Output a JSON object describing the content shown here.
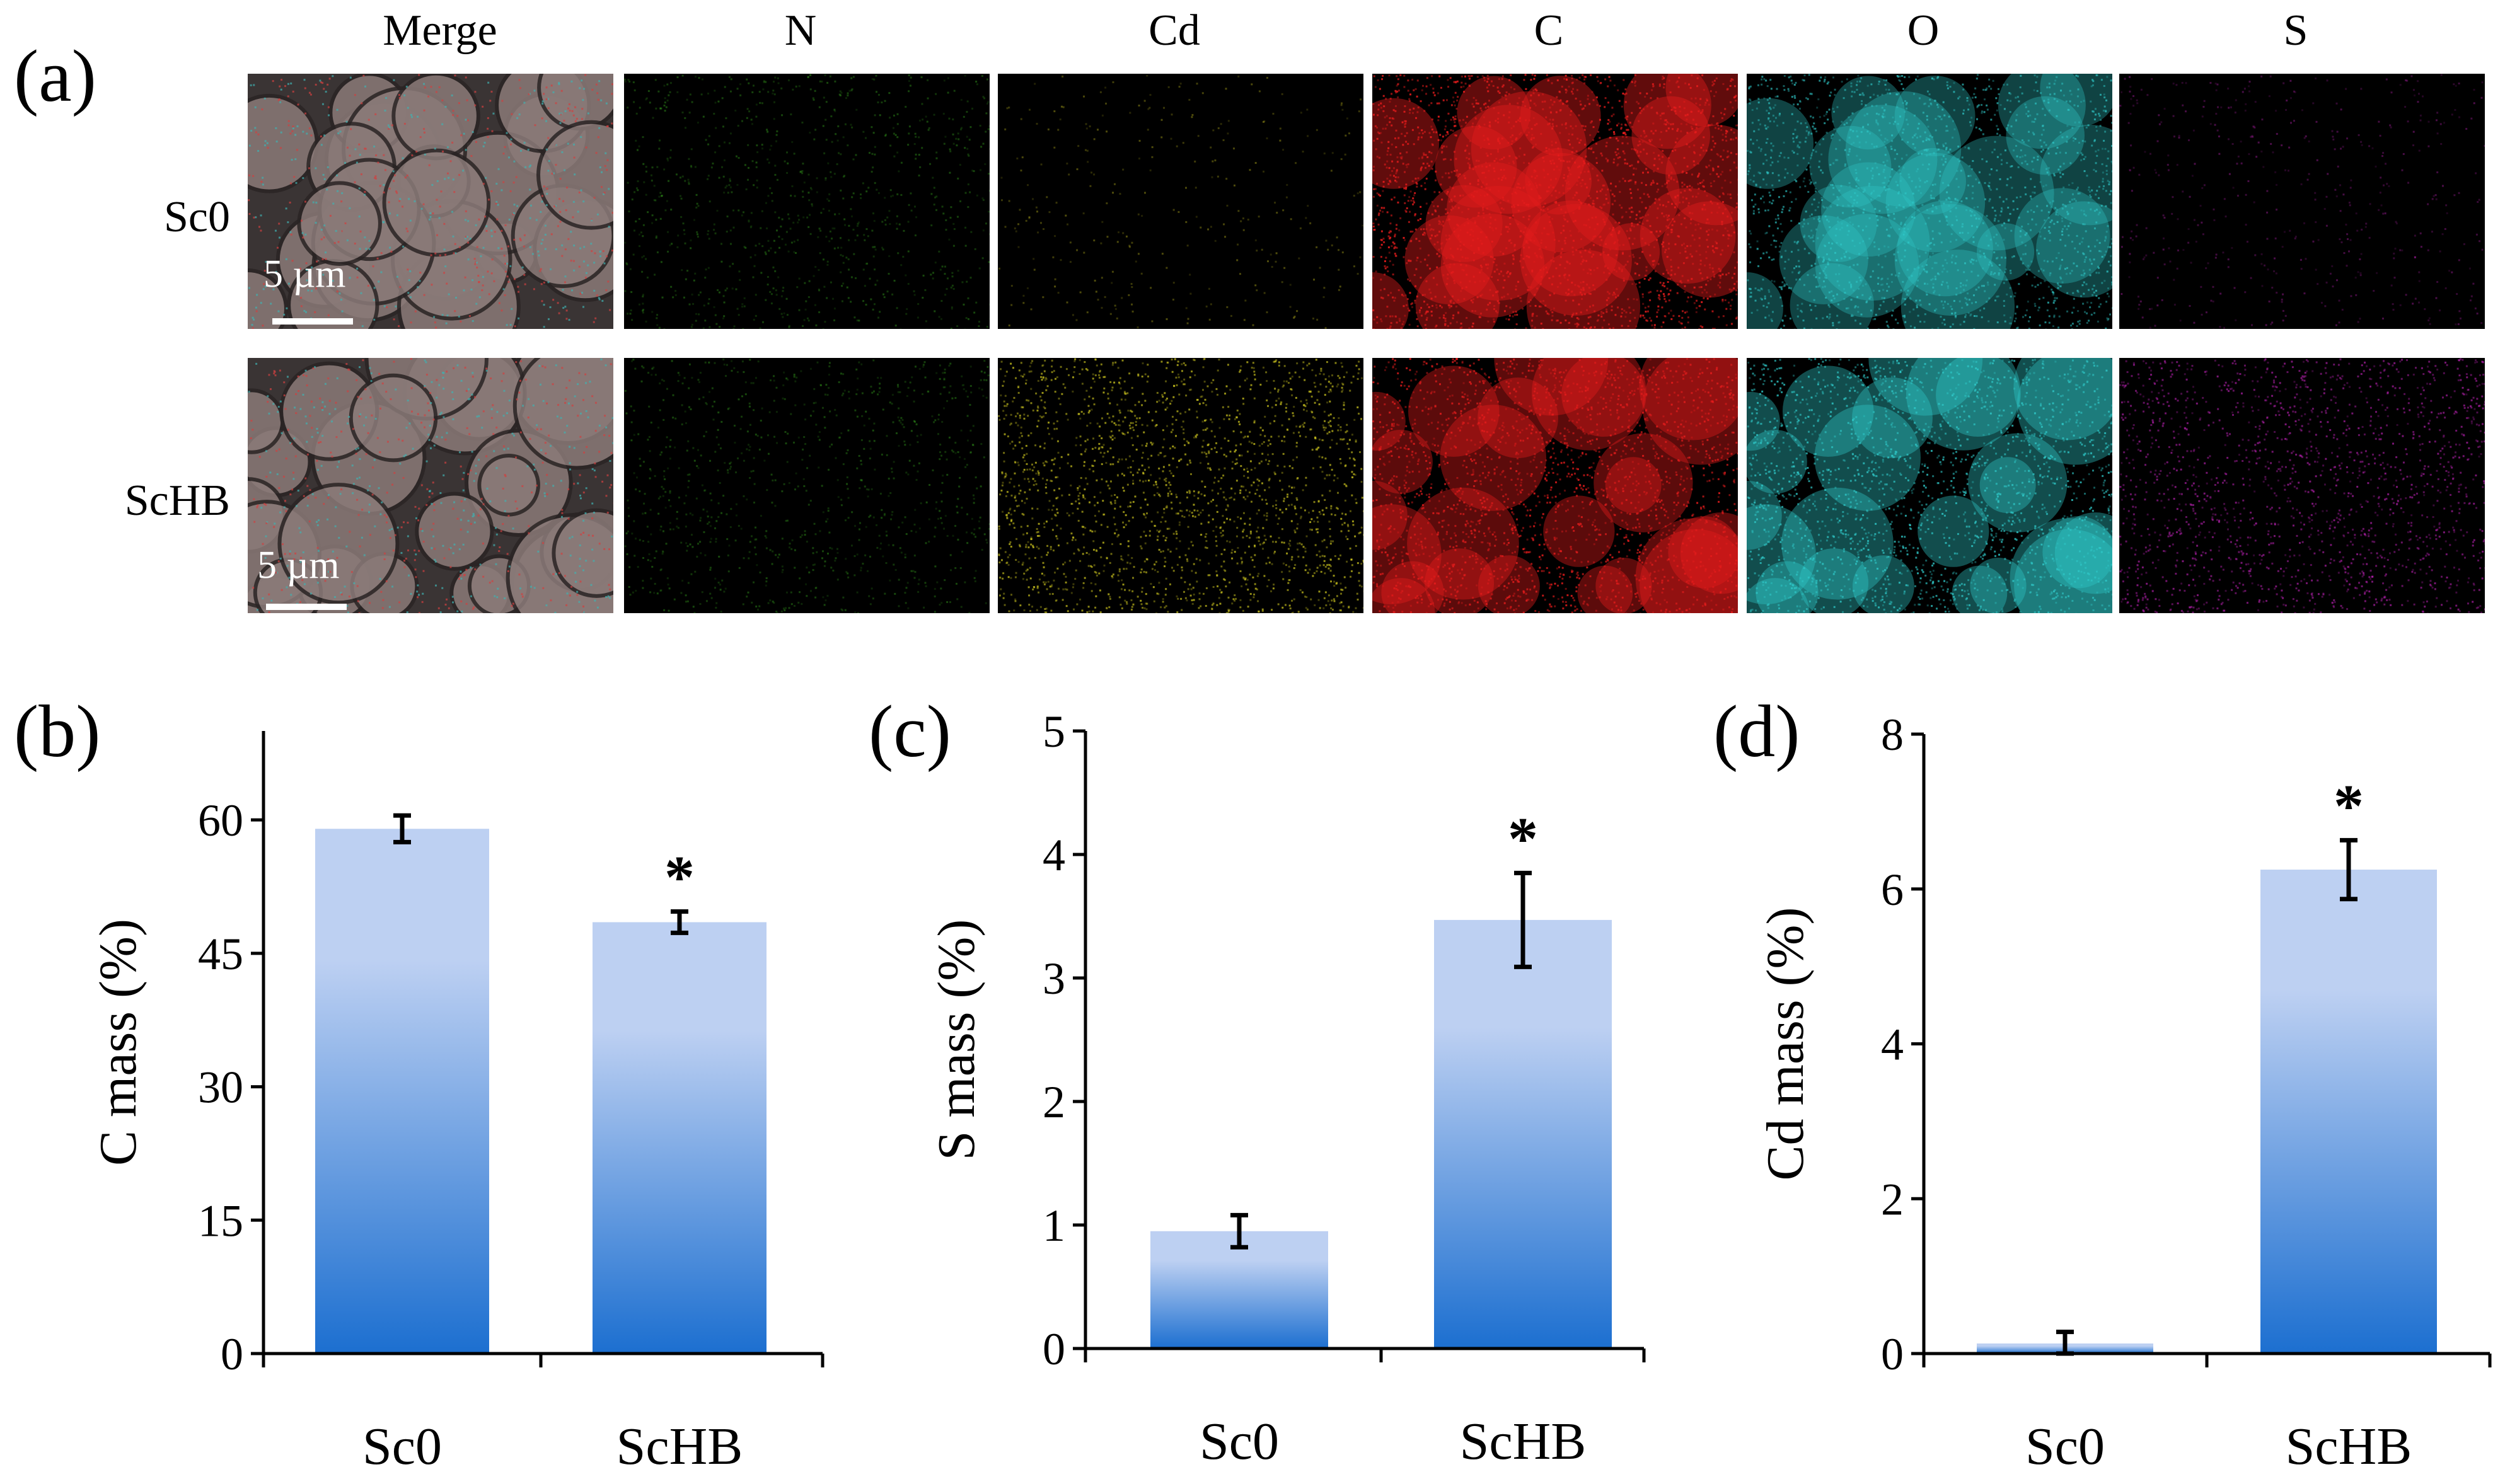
{
  "panel_a": {
    "label": "(a)",
    "columns": [
      "Merge",
      "N",
      "Cd",
      "C",
      "O",
      "S"
    ],
    "rows": [
      {
        "name": "Sc0",
        "scale": "5 µm"
      },
      {
        "name": "ScHB",
        "scale": "5 µm"
      }
    ],
    "colors": {
      "N": "#3fbf22",
      "Cd": "#d8d020",
      "C": "#e41c1c",
      "O": "#2fc8c8",
      "S": "#c824c0",
      "merge": "#8a7a78"
    },
    "intensity": {
      "Sc0": {
        "N": 0.35,
        "Cd": 0.12,
        "C": 0.95,
        "O": 0.75,
        "S": 0.18
      },
      "ScHB": {
        "N": 0.35,
        "Cd": 0.75,
        "C": 0.9,
        "O": 0.85,
        "S": 0.65
      }
    }
  },
  "chart_data": [
    {
      "label": "(b)",
      "type": "bar",
      "categories": [
        "Sc0",
        "ScHB"
      ],
      "values": [
        59,
        48.5
      ],
      "errors": [
        1.5,
        1.2
      ],
      "significance": [
        "",
        "*"
      ],
      "ylabel": "C mass (%)",
      "ylim": [
        0,
        70
      ],
      "yticks": [
        0,
        15,
        30,
        45,
        60
      ]
    },
    {
      "label": "(c)",
      "type": "bar",
      "categories": [
        "Sc0",
        "ScHB"
      ],
      "values": [
        0.95,
        3.47
      ],
      "errors": [
        0.13,
        0.38
      ],
      "significance": [
        "",
        "*"
      ],
      "ylabel": "S mass  (%)",
      "ylim": [
        0,
        5
      ],
      "yticks": [
        0,
        1,
        2,
        3,
        4,
        5
      ]
    },
    {
      "label": "(d)",
      "type": "bar",
      "categories": [
        "Sc0",
        "ScHB"
      ],
      "values": [
        0.13,
        6.25
      ],
      "errors": [
        0.15,
        0.38
      ],
      "significance": [
        "",
        "*"
      ],
      "ylabel": "Cd mass  (%)",
      "ylim": [
        0,
        8
      ],
      "yticks": [
        0,
        2,
        4,
        6,
        8
      ]
    }
  ],
  "bar_colors": {
    "top": "#bdd0f2",
    "bottom": "#1c6fd0"
  }
}
